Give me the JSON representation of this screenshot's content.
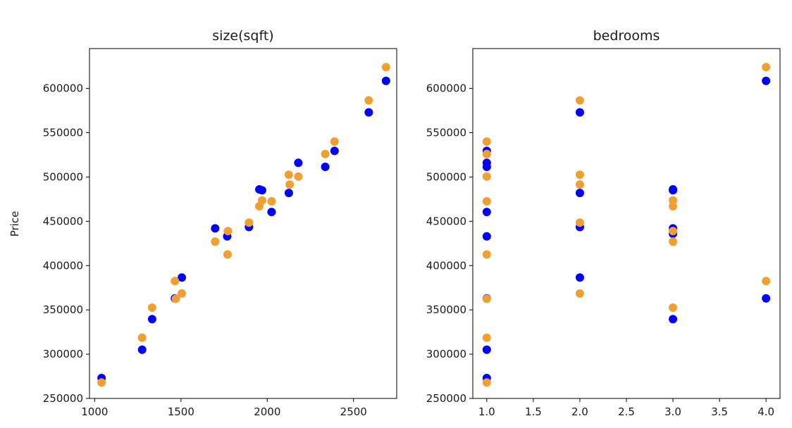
{
  "ylabel": "Price",
  "colors": {
    "series_a": "#0000ff",
    "series_b": "#f0a030"
  },
  "chart_data": [
    {
      "type": "scatter",
      "title": "size(sqft)",
      "xlabel": "",
      "ylabel": "Price",
      "xlim": [
        970,
        2750
      ],
      "ylim": [
        250000,
        645000
      ],
      "xticks": [
        1000,
        1500,
        2000,
        2500
      ],
      "yticks": [
        250000,
        300000,
        350000,
        400000,
        450000,
        500000,
        550000,
        600000
      ],
      "grid": false,
      "series": [
        {
          "color": "#0000ff",
          "points": [
            [
              1040,
              273000
            ],
            [
              1275,
              305000
            ],
            [
              1333,
              339500
            ],
            [
              1465,
              363000
            ],
            [
              1505,
              386500
            ],
            [
              1698,
              442000
            ],
            [
              1768,
              433000
            ],
            [
              1894,
              443500
            ],
            [
              1954,
              486000
            ],
            [
              1970,
              485000
            ],
            [
              2025,
              460500
            ],
            [
              2125,
              482000
            ],
            [
              2180,
              516000
            ],
            [
              2336,
              511500
            ],
            [
              2390,
              529500
            ],
            [
              2588,
              573000
            ],
            [
              2688,
              608500
            ]
          ]
        },
        {
          "color": "#f0a030",
          "points": [
            [
              1040,
              268000
            ],
            [
              1275,
              318500
            ],
            [
              1333,
              352500
            ],
            [
              1465,
              382500
            ],
            [
              1470,
              362500
            ],
            [
              1505,
              368500
            ],
            [
              1698,
              427000
            ],
            [
              1770,
              412500
            ],
            [
              1772,
              439000
            ],
            [
              1894,
              448500
            ],
            [
              1954,
              467000
            ],
            [
              1970,
              473500
            ],
            [
              2025,
              472500
            ],
            [
              2125,
              502500
            ],
            [
              2130,
              491500
            ],
            [
              2180,
              500500
            ],
            [
              2336,
              526000
            ],
            [
              2390,
              540000
            ],
            [
              2588,
              586500
            ],
            [
              2688,
              624000
            ]
          ]
        }
      ]
    },
    {
      "type": "scatter",
      "title": "bedrooms",
      "xlabel": "",
      "ylabel": "",
      "xlim": [
        0.85,
        4.15
      ],
      "ylim": [
        250000,
        645000
      ],
      "xticks": [
        "1.0",
        "1.5",
        "2.0",
        "2.5",
        "3.0",
        "3.5",
        "4.0"
      ],
      "yticks": [
        250000,
        300000,
        350000,
        400000,
        450000,
        500000,
        550000,
        600000
      ],
      "grid": false,
      "series": [
        {
          "color": "#0000ff",
          "points": [
            [
              1,
              529500
            ],
            [
              1,
              516000
            ],
            [
              1,
              511500
            ],
            [
              1,
              460500
            ],
            [
              1,
              433000
            ],
            [
              1,
              363000
            ],
            [
              1,
              305000
            ],
            [
              1,
              273000
            ],
            [
              2,
              573000
            ],
            [
              2,
              482000
            ],
            [
              2,
              443500
            ],
            [
              2,
              386500
            ],
            [
              3,
              486000
            ],
            [
              3,
              485000
            ],
            [
              3,
              442000
            ],
            [
              3,
              436000
            ],
            [
              3,
              339500
            ],
            [
              4,
              608500
            ],
            [
              4,
              363000
            ]
          ]
        },
        {
          "color": "#f0a030",
          "points": [
            [
              1,
              540000
            ],
            [
              1,
              526000
            ],
            [
              1,
              500500
            ],
            [
              1,
              472500
            ],
            [
              1,
              412500
            ],
            [
              1,
              362500
            ],
            [
              1,
              318500
            ],
            [
              1,
              268000
            ],
            [
              2,
              586500
            ],
            [
              2,
              502500
            ],
            [
              2,
              491500
            ],
            [
              2,
              448500
            ],
            [
              2,
              368500
            ],
            [
              3,
              473500
            ],
            [
              3,
              467000
            ],
            [
              3,
              439000
            ],
            [
              3,
              427000
            ],
            [
              3,
              352500
            ],
            [
              4,
              624000
            ],
            [
              4,
              382500
            ]
          ]
        }
      ]
    }
  ]
}
